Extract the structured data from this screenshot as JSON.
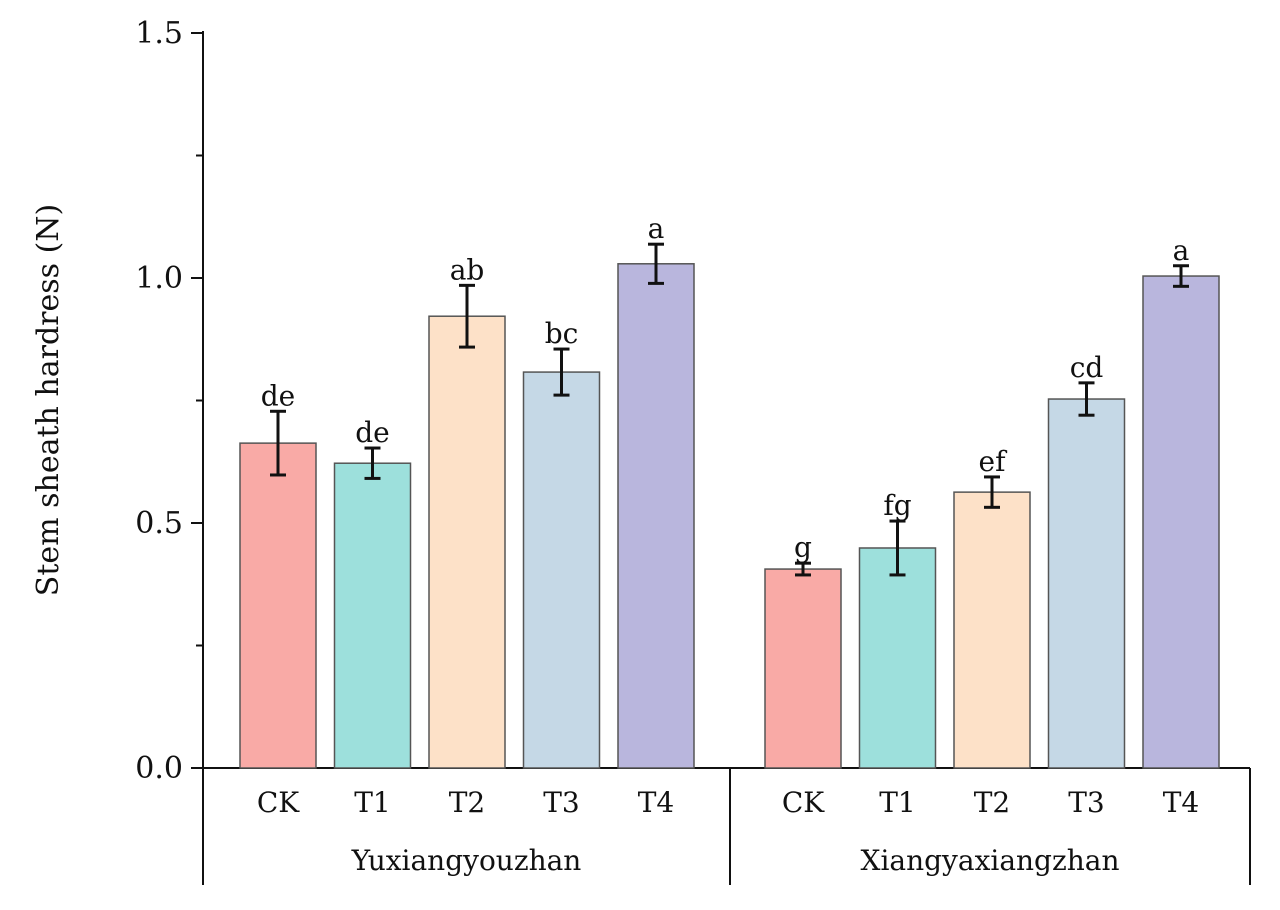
{
  "chart_data": {
    "type": "bar",
    "title": "",
    "xlabel": "",
    "ylabel": "Stem sheath hardress (N)",
    "ylim": [
      0,
      1.5
    ],
    "yticks": [
      "0.0",
      "0.5",
      "1.0",
      "1.5"
    ],
    "grid": false,
    "legend": "none",
    "groups": [
      {
        "name": "Yuxiangyouzhan",
        "categories": [
          "CK",
          "T1",
          "T2",
          "T3",
          "T4"
        ],
        "values": [
          0.663,
          0.622,
          0.922,
          0.808,
          1.029
        ],
        "errors": [
          0.065,
          0.031,
          0.063,
          0.047,
          0.04
        ],
        "letters": [
          "de",
          "de",
          "ab",
          "bc",
          "a"
        ]
      },
      {
        "name": "Xiangyaxiangzhan",
        "categories": [
          "CK",
          "T1",
          "T2",
          "T3",
          "T4"
        ],
        "values": [
          0.406,
          0.449,
          0.563,
          0.753,
          1.004
        ],
        "errors": [
          0.012,
          0.055,
          0.031,
          0.033,
          0.021
        ],
        "letters": [
          "g",
          "fg",
          "ef",
          "cd",
          "a"
        ]
      }
    ],
    "colors": [
      "#f9aaa6",
      "#9de0dc",
      "#fde1c8",
      "#c5d8e6",
      "#b9b6dd"
    ]
  }
}
